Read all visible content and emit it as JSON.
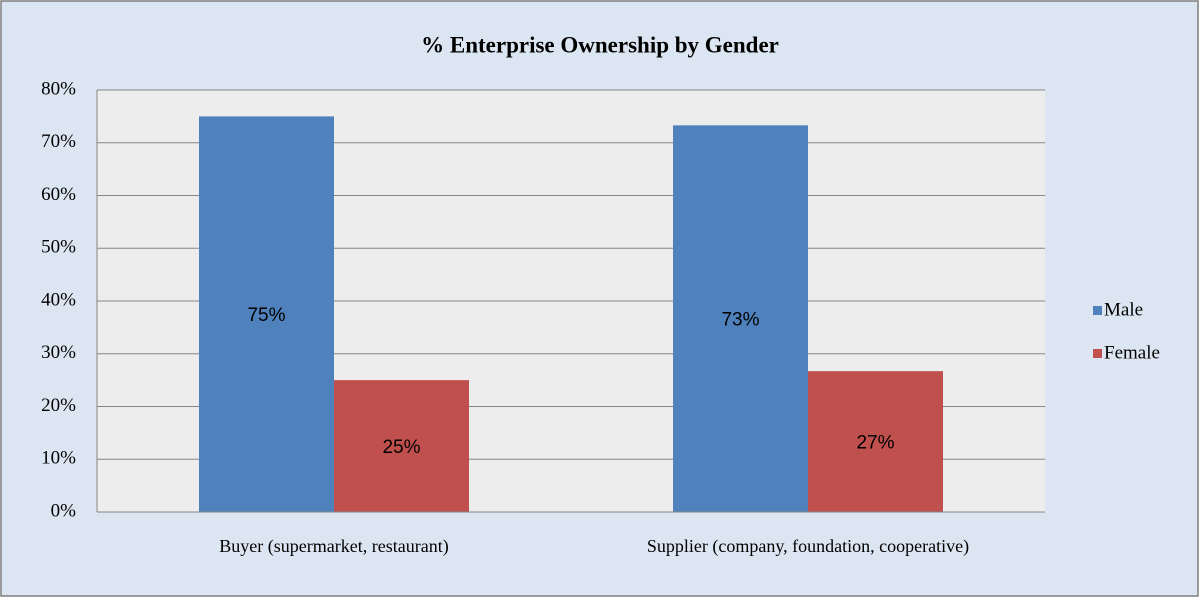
{
  "chart_data": {
    "type": "bar",
    "title": "% Enterprise Ownership by Gender",
    "categories": [
      "Buyer (supermarket, restaurant)",
      "Supplier (company, foundation, cooperative)"
    ],
    "series": [
      {
        "name": "Male",
        "color": "#4f81bd",
        "values": [
          75,
          73.3
        ],
        "value_labels": [
          "75%",
          "73%"
        ]
      },
      {
        "name": "Female",
        "color": "#c0504d",
        "values": [
          25,
          26.7
        ],
        "value_labels": [
          "25%",
          "27%"
        ]
      }
    ],
    "ylim": [
      0,
      80
    ],
    "yticks": [
      {
        "value": 0,
        "label": "0%"
      },
      {
        "value": 10,
        "label": "10%"
      },
      {
        "value": 20,
        "label": "20%"
      },
      {
        "value": 30,
        "label": "30%"
      },
      {
        "value": 40,
        "label": "40%"
      },
      {
        "value": 50,
        "label": "50%"
      },
      {
        "value": 60,
        "label": "60%"
      },
      {
        "value": 70,
        "label": "70%"
      },
      {
        "value": 80,
        "label": "80%"
      }
    ],
    "grid": true,
    "legend": "right"
  }
}
